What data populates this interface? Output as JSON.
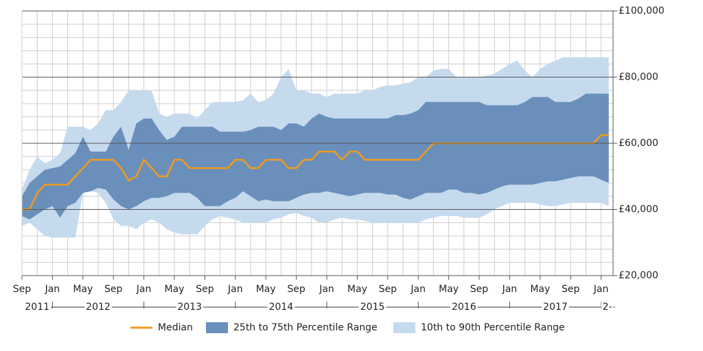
{
  "chart_data": {
    "type": "band-line",
    "x": [
      "2011-09",
      "2011-10",
      "2011-11",
      "2011-12",
      "2012-01",
      "2012-02",
      "2012-03",
      "2012-04",
      "2012-05",
      "2012-06",
      "2012-07",
      "2012-08",
      "2012-09",
      "2012-10",
      "2012-11",
      "2012-12",
      "2013-01",
      "2013-02",
      "2013-03",
      "2013-04",
      "2013-05",
      "2013-06",
      "2013-07",
      "2013-08",
      "2013-09",
      "2013-10",
      "2013-11",
      "2013-12",
      "2014-01",
      "2014-02",
      "2014-03",
      "2014-04",
      "2014-05",
      "2014-06",
      "2014-07",
      "2014-08",
      "2014-09",
      "2014-10",
      "2014-11",
      "2014-12",
      "2015-01",
      "2015-02",
      "2015-03",
      "2015-04",
      "2015-05",
      "2015-06",
      "2015-07",
      "2015-08",
      "2015-09",
      "2015-10",
      "2015-11",
      "2015-12",
      "2016-01",
      "2016-02",
      "2016-03",
      "2016-04",
      "2016-05",
      "2016-06",
      "2016-07",
      "2016-08",
      "2016-09",
      "2016-10",
      "2016-11",
      "2016-12",
      "2017-01",
      "2017-02",
      "2017-03",
      "2017-04",
      "2017-05",
      "2017-06",
      "2017-07",
      "2017-08",
      "2017-09",
      "2017-10",
      "2017-11",
      "2017-12",
      "2018-01",
      "2018-02"
    ],
    "series": [
      {
        "name": "Median",
        "color": "#f29b1d",
        "values": [
          40000,
          40000,
          45000,
          47500,
          47500,
          47500,
          47500,
          50000,
          52500,
          55000,
          55000,
          55000,
          55000,
          52500,
          48750,
          50000,
          55000,
          52500,
          50000,
          50000,
          55000,
          55000,
          52500,
          52500,
          52500,
          52500,
          52500,
          52500,
          55000,
          55000,
          52500,
          52500,
          55000,
          55000,
          55000,
          52500,
          52500,
          55000,
          55000,
          57500,
          57500,
          57500,
          55000,
          57500,
          57500,
          55000,
          55000,
          55000,
          55000,
          55000,
          55000,
          55000,
          55000,
          57500,
          60000,
          60000,
          60000,
          60000,
          60000,
          60000,
          60000,
          60000,
          60000,
          60000,
          60000,
          60000,
          60000,
          60000,
          60000,
          60000,
          60000,
          60000,
          60000,
          60000,
          60000,
          60000,
          62500,
          62500
        ]
      },
      {
        "name": "25th to 75th Percentile Range",
        "color": "#6a8fbb",
        "low": [
          38000,
          37000,
          38500,
          40000,
          41000,
          37500,
          41000,
          42000,
          45000,
          45500,
          46500,
          46000,
          43000,
          41000,
          40000,
          41000,
          42500,
          43500,
          43500,
          44000,
          45000,
          45000,
          45000,
          43500,
          41000,
          41000,
          41000,
          42500,
          43500,
          45500,
          44000,
          42500,
          43000,
          42500,
          42500,
          42500,
          43500,
          44500,
          45000,
          45000,
          45500,
          45000,
          44500,
          44000,
          44500,
          45000,
          45000,
          45000,
          44500,
          44500,
          43500,
          43000,
          44000,
          45000,
          45000,
          45000,
          46000,
          46000,
          45000,
          45000,
          44500,
          45000,
          46000,
          47000,
          47500,
          47500,
          47500,
          47500,
          48000,
          48500,
          48500,
          49000,
          49500,
          50000,
          50000,
          50000,
          49000,
          48000
        ],
        "high": [
          44000,
          48000,
          50000,
          52000,
          52500,
          53000,
          55000,
          57000,
          62000,
          57500,
          57500,
          57500,
          62000,
          65000,
          58000,
          66000,
          67500,
          67500,
          64000,
          61000,
          62000,
          65000,
          65000,
          65000,
          65000,
          65000,
          63500,
          63500,
          63500,
          63500,
          64000,
          65000,
          65000,
          65000,
          64000,
          66000,
          66000,
          65000,
          67500,
          69000,
          68000,
          67500,
          67500,
          67500,
          67500,
          67500,
          67500,
          67500,
          67500,
          68500,
          68500,
          69000,
          70000,
          72500,
          72500,
          72500,
          72500,
          72500,
          72500,
          72500,
          72500,
          71500,
          71500,
          71500,
          71500,
          71500,
          72500,
          74000,
          74000,
          74000,
          72500,
          72500,
          72500,
          73500,
          75000,
          75000,
          75000,
          75000
        ]
      },
      {
        "name": "10th to 90th Percentile Range",
        "color": "#c6daee",
        "low": [
          35000,
          36000,
          34000,
          32000,
          31500,
          31500,
          31500,
          31500,
          45000,
          45500,
          45000,
          42000,
          37000,
          35000,
          35000,
          34000,
          36000,
          37000,
          36000,
          34000,
          33000,
          32500,
          32500,
          32500,
          35000,
          37000,
          38000,
          37500,
          37000,
          36000,
          36000,
          36000,
          36000,
          37000,
          37500,
          38500,
          39000,
          38000,
          37500,
          36000,
          36000,
          37000,
          37500,
          37000,
          37000,
          36500,
          36000,
          36000,
          36000,
          36000,
          36000,
          36000,
          36000,
          37000,
          37500,
          38000,
          38000,
          38000,
          37500,
          37500,
          37500,
          38500,
          40000,
          41000,
          42000,
          42000,
          42000,
          42000,
          41500,
          41000,
          41000,
          41500,
          42000,
          42000,
          42000,
          42000,
          42000,
          41000
        ],
        "high": [
          46000,
          52000,
          56000,
          54000,
          55000,
          57000,
          65000,
          65000,
          65000,
          64000,
          66000,
          70000,
          70000,
          72500,
          76000,
          76000,
          76000,
          76000,
          69000,
          68000,
          69000,
          69000,
          69000,
          67500,
          70000,
          72500,
          72500,
          72500,
          72500,
          73000,
          75000,
          72500,
          73000,
          75000,
          80000,
          82500,
          76000,
          76000,
          75000,
          75000,
          74000,
          75000,
          75000,
          75000,
          75000,
          76000,
          76000,
          77000,
          77500,
          77500,
          78000,
          78500,
          80000,
          80000,
          82000,
          82500,
          82500,
          80000,
          80000,
          80000,
          80000,
          80500,
          81000,
          82500,
          84000,
          85000,
          82000,
          80000,
          82500,
          84000,
          85000,
          86000,
          86000,
          86000,
          86000,
          86000,
          86000,
          86000
        ]
      }
    ],
    "ylim": [
      20000,
      100000
    ],
    "yticks": [
      {
        "value": 20000,
        "label": "£20,000"
      },
      {
        "value": 40000,
        "label": "£40,000"
      },
      {
        "value": 60000,
        "label": "£60,000"
      },
      {
        "value": 80000,
        "label": "£80,000"
      },
      {
        "value": 100000,
        "label": "£100,000"
      }
    ],
    "minor_yticks": [
      24000,
      28000,
      32000,
      36000,
      44000,
      48000,
      52000,
      56000,
      64000,
      68000,
      72000,
      76000,
      84000,
      88000,
      92000,
      96000
    ],
    "xticks": [
      {
        "value": "2011-09",
        "label": "Sep"
      },
      {
        "value": "2012-01",
        "label": "Jan"
      },
      {
        "value": "2012-05",
        "label": "May"
      },
      {
        "value": "2012-09",
        "label": "Sep"
      },
      {
        "value": "2013-01",
        "label": "Jan"
      },
      {
        "value": "2013-05",
        "label": "May"
      },
      {
        "value": "2013-09",
        "label": "Sep"
      },
      {
        "value": "2014-01",
        "label": "Jan"
      },
      {
        "value": "2014-05",
        "label": "May"
      },
      {
        "value": "2014-09",
        "label": "Sep"
      },
      {
        "value": "2015-01",
        "label": "Jan"
      },
      {
        "value": "2015-05",
        "label": "May"
      },
      {
        "value": "2015-09",
        "label": "Sep"
      },
      {
        "value": "2016-01",
        "label": "Jan"
      },
      {
        "value": "2016-05",
        "label": "May"
      },
      {
        "value": "2016-09",
        "label": "Sep"
      },
      {
        "value": "2017-01",
        "label": "Jan"
      },
      {
        "value": "2017-05",
        "label": "May"
      },
      {
        "value": "2017-09",
        "label": "Sep"
      },
      {
        "value": "2018-01",
        "label": "Jan"
      }
    ],
    "year_labels": [
      {
        "value": "2011-09",
        "label": "2011"
      },
      {
        "value": "2012-01",
        "label": "2012"
      },
      {
        "value": "2013-01",
        "label": "2013"
      },
      {
        "value": "2014-01",
        "label": "2014"
      },
      {
        "value": "2015-01",
        "label": "2015"
      },
      {
        "value": "2016-01",
        "label": "2016"
      },
      {
        "value": "2017-01",
        "label": "2017"
      },
      {
        "value": "2018-01",
        "label": "2-"
      }
    ],
    "grid": true,
    "legend": "bottom"
  }
}
